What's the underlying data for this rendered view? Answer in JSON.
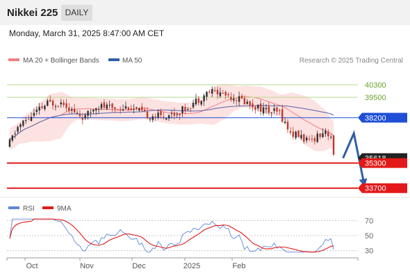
{
  "header": {
    "title": "Nikkei 225",
    "period": "DAILY"
  },
  "datetime": "Monday, March 31, 2025 8:47:00 AM CET",
  "colors": {
    "candle_up": "#2f2f2f",
    "candle_down": "#c0392b",
    "bollinger_fill": "#fde2e2",
    "ma20": "#f08080",
    "ma50": "#5561a8",
    "green_level": "#b5d98c",
    "blue_level": "#1f4fd6",
    "red_level": "#e31919",
    "arrow": "#2f5fa6",
    "rsi": "#5f86d9",
    "rsi_ma": "#e31919"
  },
  "chart_data": [
    {
      "type": "candlestick",
      "legend": [
        {
          "label": "MA 20 + Bollinger Bands",
          "color": "#f08080"
        },
        {
          "label": "MA 50",
          "color": "#2f5fa6"
        }
      ],
      "credit": "Research © 2025 Trading Central",
      "ylim": [
        33200,
        41500
      ],
      "x_tick_labels": [
        "Oct",
        "Nov",
        "Dec",
        "2025",
        "Feb"
      ],
      "levels": [
        {
          "label": "40300",
          "value": 40300,
          "style": "green"
        },
        {
          "label": "39500",
          "value": 39500,
          "style": "green"
        },
        {
          "label": "38200",
          "value": 38200,
          "style": "blue"
        },
        {
          "label": "35618",
          "value": 35618,
          "style": "current"
        },
        {
          "label": "35300",
          "value": 35300,
          "style": "red"
        },
        {
          "label": "33700",
          "value": 33700,
          "style": "red"
        }
      ],
      "forecast_path": [
        {
          "index": 124,
          "value": 35618
        },
        {
          "index": 128,
          "value": 37200
        },
        {
          "index": 132,
          "value": 33800
        }
      ]
    },
    {
      "type": "line",
      "legend": [
        {
          "label": "RSI",
          "color": "#5f86d9"
        },
        {
          "label": "9MA",
          "color": "#e31919"
        }
      ],
      "ylim": [
        25,
        75
      ],
      "y_ticks": [
        "70",
        "50",
        "30"
      ]
    }
  ]
}
